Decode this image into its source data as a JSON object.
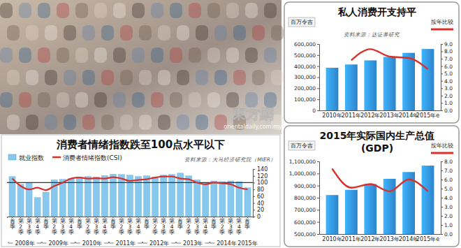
{
  "watermark": {
    "logo": "東方網",
    "site": "orientaldaily.com.my"
  },
  "chart_data": [
    {
      "type": "bar",
      "title": "消费者情绪指数跌至100点水平以下",
      "source": "资料来源：大马经济研究院（MIER）",
      "categories": [
        "首季",
        "第2季",
        "第3季",
        "第4季",
        "首季",
        "第2季",
        "第3季",
        "第4季",
        "首季",
        "第2季",
        "第3季",
        "第4季",
        "首季",
        "第2季",
        "第3季",
        "第4季",
        "首季",
        "第2季",
        "第3季",
        "第4季",
        "首季",
        "第2季",
        "第3季",
        "第4季",
        "首季",
        "第2季",
        "第3季",
        "第4季",
        "首季"
      ],
      "category_groups": [
        {
          "label": "2008年",
          "size": 4
        },
        {
          "label": "2009年",
          "size": 4
        },
        {
          "label": "2010年",
          "size": 4
        },
        {
          "label": "2011年",
          "size": 4
        },
        {
          "label": "2012年",
          "size": 4
        },
        {
          "label": "2013年",
          "size": 4
        },
        {
          "label": "2014年",
          "size": 4
        },
        {
          "label": "2015年",
          "size": 1
        }
      ],
      "series": [
        {
          "name": "就业指数",
          "type": "bar",
          "color": "#86c8ee",
          "values": [
            118,
            95,
            100,
            56,
            72,
            108,
            110,
            112,
            116,
            118,
            117,
            121,
            125,
            124,
            122,
            118,
            120,
            117,
            122,
            124,
            128,
            120,
            108,
            100,
            105,
            103,
            105,
            103,
            85
          ]
        },
        {
          "name": "消费者情绪指数(CSI)",
          "type": "line",
          "color": "#d7312a",
          "values": [
            112,
            90,
            80,
            85,
            78,
            90,
            100,
            112,
            115,
            112,
            113,
            112,
            116,
            112,
            105,
            108,
            110,
            115,
            118,
            118,
            112,
            110,
            100,
            95,
            100,
            98,
            95,
            85,
            80
          ]
        }
      ],
      "ylim": [
        0,
        140
      ],
      "yticks": [
        0,
        20,
        40,
        60,
        80,
        100,
        120,
        140
      ],
      "reference_line": 100,
      "legend": "top-left"
    },
    {
      "type": "bar",
      "title": [
        "私人消费开支持平"
      ],
      "source": "资料来源：达证券研究",
      "y_label": "百万令吉",
      "categories": [
        "2010年",
        "2011年",
        "2012年",
        "2013年",
        "2014年",
        "2015年e"
      ],
      "series": [
        {
          "type": "bar",
          "color": "#2d83c9",
          "values": [
            385000,
            415000,
            452000,
            483000,
            520000,
            555000
          ]
        },
        {
          "name": "按年比较",
          "type": "line",
          "axis": "y2",
          "color": "#d7312a",
          "values": [
            null,
            6.8,
            8.3,
            7.3,
            7.1,
            5.6
          ]
        }
      ],
      "ylim": [
        0,
        600000
      ],
      "yticks": [
        0,
        {
          "value": 100000,
          "label": "100,000"
        },
        {
          "value": 200000,
          "label": "200,000"
        },
        {
          "value": 300000,
          "label": "300,000"
        },
        {
          "value": 400000,
          "label": "400,000"
        },
        {
          "value": 500000,
          "label": "500,000"
        },
        {
          "value": 600000,
          "label": "600,000"
        }
      ],
      "y2lim": [
        0,
        9
      ],
      "y2ticks": [
        {
          "value": 0,
          "label": "0.0"
        },
        {
          "value": 1,
          "label": "1.0"
        },
        {
          "value": 2,
          "label": "2.0"
        },
        {
          "value": 3,
          "label": "3.0"
        },
        {
          "value": 4,
          "label": "4.0"
        },
        {
          "value": 5,
          "label": "5.0"
        },
        {
          "value": 6,
          "label": "6.0"
        },
        {
          "value": 7,
          "label": "7.0"
        },
        {
          "value": 8,
          "label": "8.0"
        },
        {
          "value": 9,
          "label": "9.0"
        }
      ],
      "legend": "top-right"
    },
    {
      "type": "bar",
      "title": [
        "2015年实际国内生产总值",
        "(GDP)"
      ],
      "y_label": "百万令吉",
      "categories": [
        "2010年",
        "2011年",
        "2012年",
        "2013年",
        "2014年",
        "2015年e"
      ],
      "series": [
        {
          "type": "bar",
          "color": "#2d83c9",
          "values": [
            822000,
            865000,
            912000,
            956000,
            1012000,
            1065000
          ]
        },
        {
          "name": "按年比较",
          "type": "line",
          "axis": "y2",
          "color": "#d7312a",
          "values": [
            7.2,
            5.1,
            5.5,
            4.7,
            6.0,
            4.7
          ]
        }
      ],
      "ylim": [
        500000,
        1100000
      ],
      "yticks": [
        {
          "value": 500000,
          "label": "500,000"
        },
        {
          "value": 600000,
          "label": "600,000"
        },
        {
          "value": 700000,
          "label": "700,000"
        },
        {
          "value": 800000,
          "label": "800,000"
        },
        {
          "value": 900000,
          "label": "900,000"
        },
        {
          "value": 1000000,
          "label": "1,000,000"
        },
        {
          "value": 1100000,
          "label": "1,100,000"
        }
      ],
      "y2lim": [
        0,
        8
      ],
      "y2ticks": [
        {
          "value": 0,
          "label": "0.0"
        },
        {
          "value": 1,
          "label": "1.0"
        },
        {
          "value": 2,
          "label": "2.0"
        },
        {
          "value": 3,
          "label": "3.0"
        },
        {
          "value": 4,
          "label": "4.0"
        },
        {
          "value": 5,
          "label": "5.0"
        },
        {
          "value": 6,
          "label": "6.0"
        },
        {
          "value": 7,
          "label": "7.0"
        },
        {
          "value": 8,
          "label": "8.0"
        }
      ],
      "legend": "top-right"
    }
  ]
}
